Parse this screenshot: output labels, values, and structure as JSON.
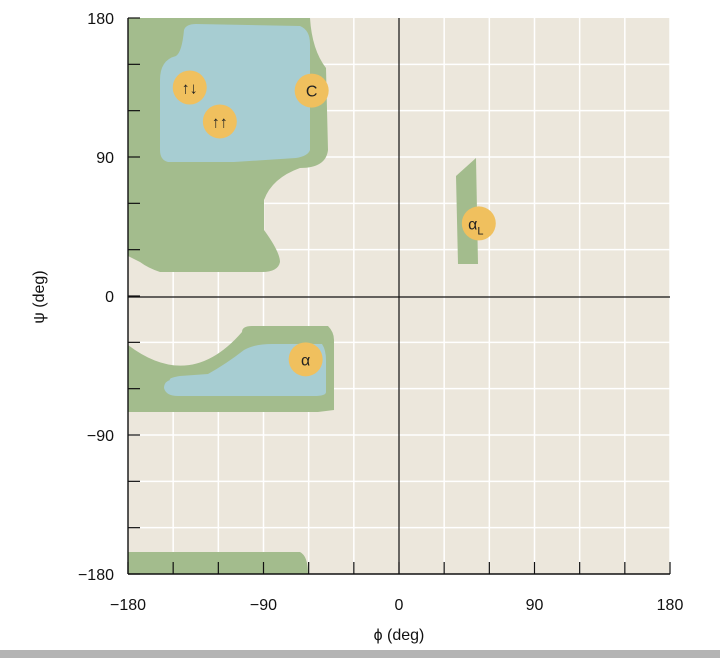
{
  "chart_data": {
    "type": "diagram",
    "xlabel": "ϕ (deg)",
    "ylabel": "ψ (deg)",
    "xlim": [
      -180,
      180
    ],
    "ylim": [
      -180,
      180
    ],
    "x_ticks": [
      {
        "value": -180,
        "label": "−180"
      },
      {
        "value": -90,
        "label": "−90"
      },
      {
        "value": 0,
        "label": "0"
      },
      {
        "value": 90,
        "label": "90"
      },
      {
        "value": 180,
        "label": "180"
      }
    ],
    "y_ticks": [
      {
        "value": 180,
        "label": "180"
      },
      {
        "value": 90,
        "label": "90"
      },
      {
        "value": 0,
        "label": "0"
      },
      {
        "value": -90,
        "label": "−90"
      },
      {
        "value": -180,
        "label": "−180"
      }
    ],
    "colors": {
      "background": "#ece7dc",
      "allowed_region": "#a3bc8d",
      "favored_region": "#a7cdd2",
      "marker": "#f0c05e",
      "grid": "#ffffff",
      "axis": "#111111"
    },
    "markers": [
      {
        "id": "antiparallel-beta",
        "label": "↑↓",
        "phi": -139,
        "psi": 135
      },
      {
        "id": "parallel-beta",
        "label": "↑↑",
        "phi": -119,
        "psi": 113
      },
      {
        "id": "collagen",
        "label": "C",
        "phi": -58,
        "psi": 133
      },
      {
        "id": "alpha-helix",
        "label": "α",
        "phi": -62,
        "psi": -41
      },
      {
        "id": "left-alpha-helix",
        "label": "α",
        "sub": "L",
        "phi": 53,
        "psi": 47
      }
    ]
  }
}
